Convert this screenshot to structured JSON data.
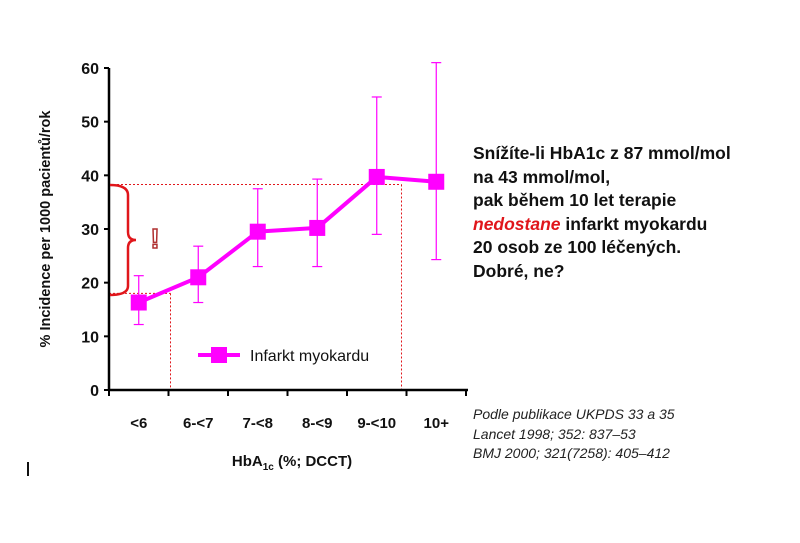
{
  "chart_data": {
    "type": "line",
    "title": "",
    "xlabel": "HbA1c (%; DCCT)",
    "xlabel_main": "HbA",
    "xlabel_sub": "1c",
    "xlabel_rest": " (%; DCCT)",
    "ylabel": "% Incidence per 1000 pacientů/rok",
    "ylim": [
      0,
      60
    ],
    "yticks": [
      "0",
      "10",
      "20",
      "30",
      "40",
      "50",
      "60"
    ],
    "categories": [
      "<6",
      "6-<7",
      "7-<8",
      "8-<9",
      "9-<10",
      "10+"
    ],
    "series": [
      {
        "name": "Infarkt myokardu",
        "color": "#ff00ff",
        "values": [
          16.3,
          21.0,
          29.5,
          30.2,
          39.7,
          38.8
        ],
        "error_low": [
          12.2,
          16.3,
          23.0,
          23.0,
          29.0,
          24.3
        ],
        "error_high": [
          21.3,
          26.8,
          37.5,
          39.3,
          54.6,
          61.0
        ]
      }
    ],
    "legend_position": "bottom-center",
    "annotations": {
      "reference_lines": [
        38.3,
        18.0
      ],
      "reference_color": "#e0161b",
      "mark": "!"
    }
  },
  "note": {
    "line1": "Snížíte-li HbA1c z  87 mmol/mol",
    "line2": "na 43 mmol/mol,",
    "line3": "pak během 10 let terapie",
    "line4_red": "nedostane",
    "line4_rest": " infarkt myokardu",
    "line5": "20 osob ze 100 léčených.",
    "line6": "Dobré, ne?"
  },
  "source": {
    "line1": "Podle publikace UKPDS 33 a 35",
    "line2": "Lancet 1998; 352: 837–53",
    "line3": "BMJ 2000; 321(7258): 405–412"
  }
}
